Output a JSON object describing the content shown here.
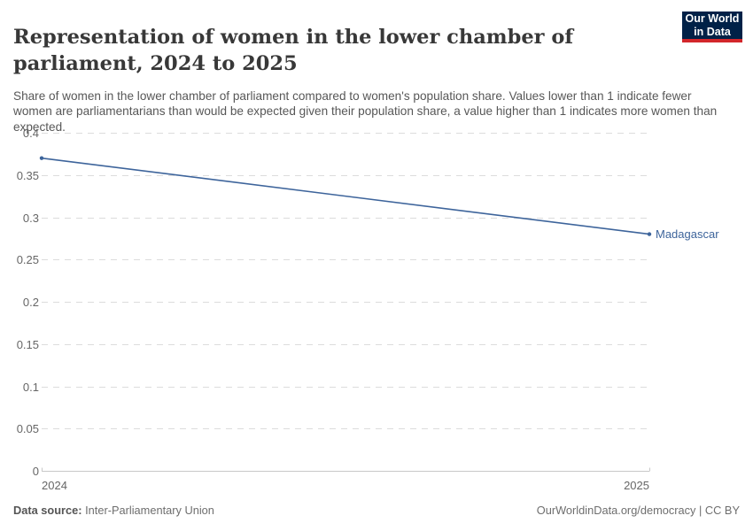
{
  "header": {
    "title": "Representation of women in the lower chamber of parliament, 2024 to 2025",
    "logo": {
      "line1": "Our World",
      "line2": "in Data",
      "bg_color": "#002147",
      "accent_color": "#d3262b"
    }
  },
  "subtitle": "Share of women in the lower chamber of parliament compared to women's population share. Values lower than 1 indicate fewer women are parliamentarians than would be expected given their population share, a value higher than 1 indicates more women than expected.",
  "chart_data": {
    "type": "line",
    "title": "Representation of women in the lower chamber of parliament, 2024 to 2025",
    "x": [
      2024,
      2025
    ],
    "series": [
      {
        "name": "Madagascar",
        "color": "#3d649b",
        "values": [
          0.37,
          0.28
        ]
      }
    ],
    "ylim": [
      0,
      0.4
    ],
    "yticks": [
      {
        "value": 0,
        "label": "0"
      },
      {
        "value": 0.05,
        "label": "0.05"
      },
      {
        "value": 0.1,
        "label": "0.1"
      },
      {
        "value": 0.15,
        "label": "0.15"
      },
      {
        "value": 0.2,
        "label": "0.2"
      },
      {
        "value": 0.25,
        "label": "0.25"
      },
      {
        "value": 0.3,
        "label": "0.3"
      },
      {
        "value": 0.35,
        "label": "0.35"
      },
      {
        "value": 0.4,
        "label": "0.4"
      }
    ],
    "xticks": [
      {
        "value": 2024,
        "label": "2024"
      },
      {
        "value": 2025,
        "label": "2025"
      }
    ],
    "grid": "horizontal-dashed",
    "legend": "end-of-line-label",
    "colors": {
      "gridline": "#dcdcdc",
      "axis": "#c8c8c8",
      "tick_text": "#666666"
    }
  },
  "footer": {
    "datasource_label": "Data source:",
    "datasource_value": "Inter-Parliamentary Union",
    "attribution": "OurWorldinData.org/democracy | CC BY"
  }
}
